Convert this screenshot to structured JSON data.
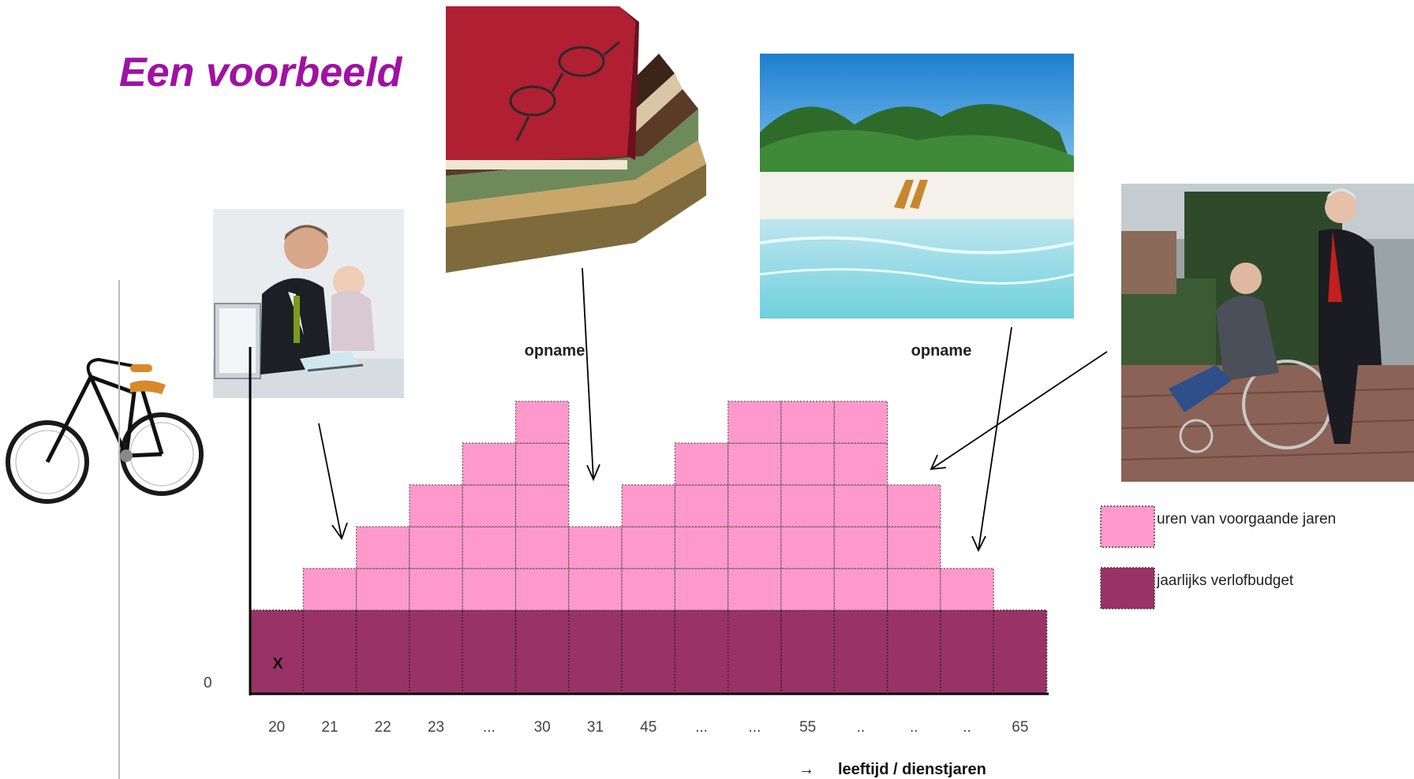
{
  "page": {
    "title": "Een voorbeeld"
  },
  "photos": {
    "father": "man with baby ironing at laptop",
    "books": "stack of books with glasses",
    "beach": "tropical beach with lounge chairs",
    "elderly": "woman pushing elderly man in wheelchair",
    "bicycle": "black bicycle"
  },
  "colors": {
    "light": "#ff99cc",
    "dark": "#993366",
    "title": "#a011a3"
  },
  "chart_data": {
    "type": "bar",
    "stacked": true,
    "categories": [
      "20",
      "21",
      "22",
      "23",
      "...",
      "30",
      "31",
      "45",
      "...",
      "...",
      "55",
      "..",
      "..",
      "..",
      "65"
    ],
    "series": [
      {
        "name": "jaarlijks verlofbudget",
        "values": [
          2,
          2,
          2,
          2,
          2,
          2,
          2,
          2,
          2,
          2,
          2,
          2,
          2,
          2,
          2
        ]
      },
      {
        "name": "uren van voorgaande jaren",
        "values": [
          0,
          1,
          2,
          3,
          4,
          5,
          2,
          3,
          4,
          5,
          5,
          5,
          3,
          1,
          0
        ]
      }
    ],
    "ylim": [
      0,
      7
    ],
    "ytick_label": "0",
    "first_bar_marker": "X",
    "annotations": [
      "opname",
      "opname"
    ],
    "xlabel": "leeftijd / dienstjaren",
    "xlabel_arrow": "→",
    "legend_position": "right"
  }
}
